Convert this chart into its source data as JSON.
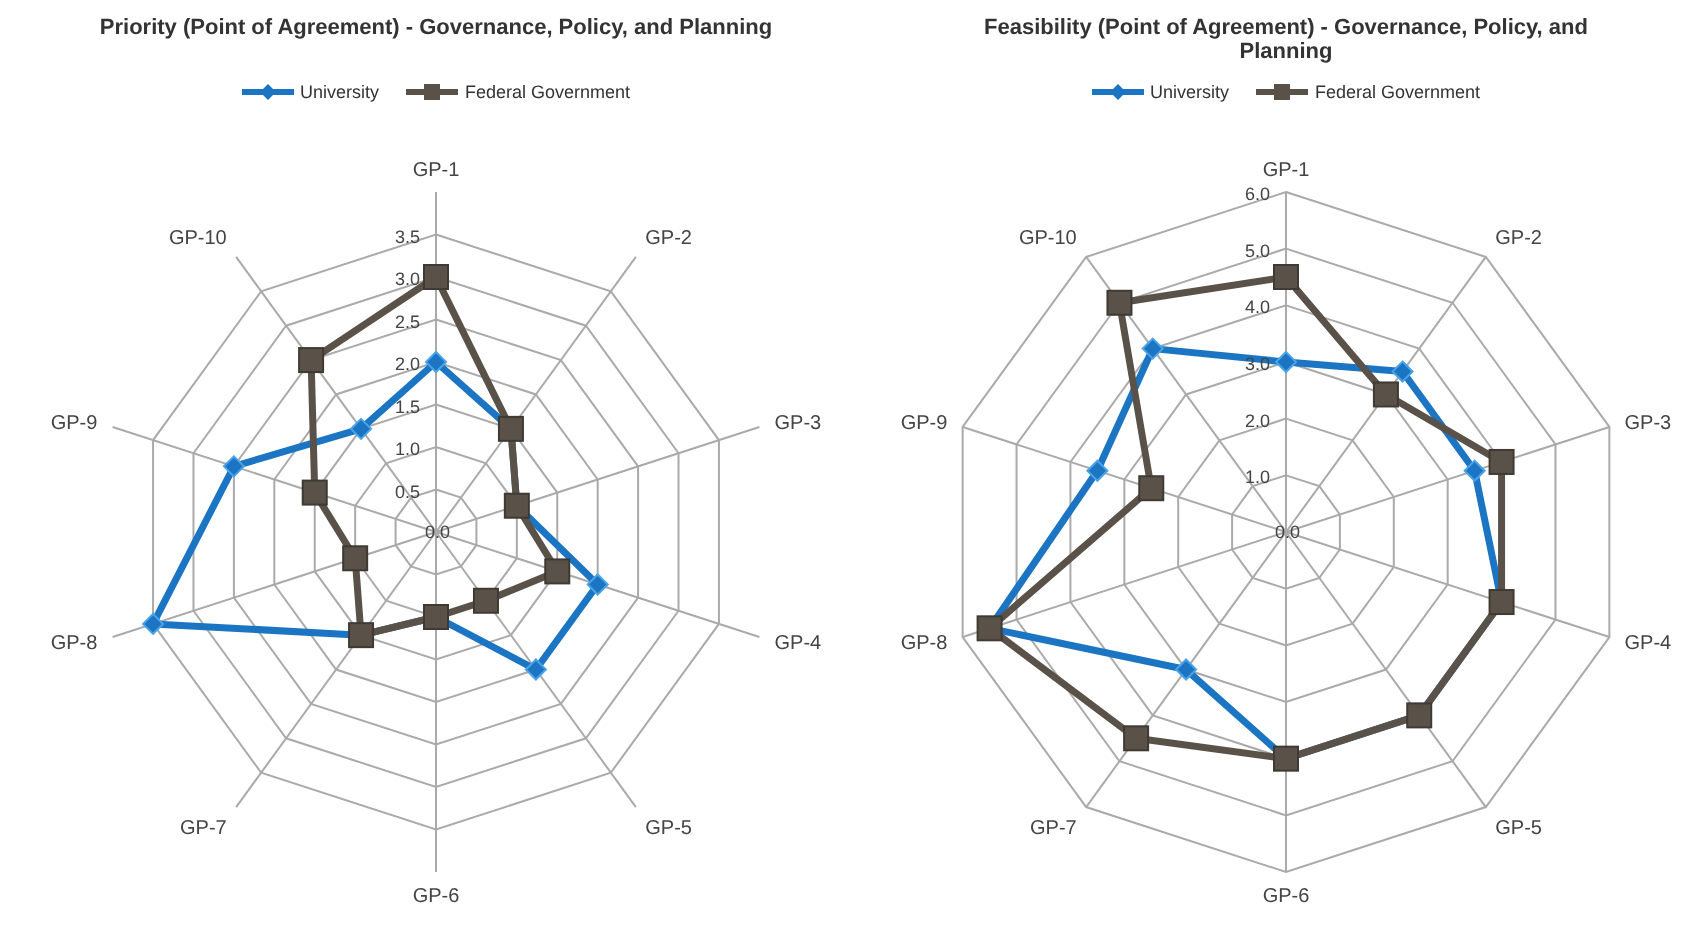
{
  "chart_data": [
    {
      "type": "radar",
      "title": "Priority (Point of Agreement) - Governance, Policy, and Planning",
      "categories": [
        "GP-1",
        "GP-2",
        "GP-3",
        "GP-4",
        "GP-5",
        "GP-6",
        "GP-7",
        "GP-8",
        "GP-9",
        "GP-10"
      ],
      "series": [
        {
          "name": "University",
          "color": "#1b75c3",
          "marker": "diamond",
          "values": [
            2.0,
            1.5,
            1.0,
            2.0,
            2.0,
            1.0,
            1.5,
            3.5,
            2.5,
            1.5
          ]
        },
        {
          "name": "Federal Government",
          "color": "#5a5248",
          "marker": "square",
          "values": [
            3.0,
            1.5,
            1.0,
            1.5,
            1.0,
            1.0,
            1.5,
            1.0,
            1.5,
            2.5
          ]
        }
      ],
      "ylim": [
        0,
        3.5
      ],
      "yticks": [
        {
          "value": 0,
          "label": "0.0"
        },
        {
          "value": 0.5,
          "label": "0.5"
        },
        {
          "value": 1,
          "label": "1.0"
        },
        {
          "value": 1.5,
          "label": "1.5"
        },
        {
          "value": 2,
          "label": "2.0"
        },
        {
          "value": 2.5,
          "label": "2.5"
        },
        {
          "value": 3,
          "label": "3.0"
        },
        {
          "value": 3.5,
          "label": "3.5"
        }
      ],
      "grid": true,
      "legend": "top"
    },
    {
      "type": "radar",
      "title": "Feasibility (Point of Agreement) - Governance, Policy, and Planning",
      "categories": [
        "GP-1",
        "GP-2",
        "GP-3",
        "GP-4",
        "GP-5",
        "GP-6",
        "GP-7",
        "GP-8",
        "GP-9",
        "GP-10"
      ],
      "series": [
        {
          "name": "University",
          "color": "#1b75c3",
          "marker": "diamond",
          "values": [
            3.0,
            3.5,
            3.5,
            4.0,
            4.0,
            4.0,
            3.0,
            5.5,
            3.5,
            4.0
          ]
        },
        {
          "name": "Federal Government",
          "color": "#5a5248",
          "marker": "square",
          "values": [
            4.5,
            3.0,
            4.0,
            4.0,
            4.0,
            4.0,
            4.5,
            5.5,
            2.5,
            5.0
          ]
        }
      ],
      "ylim": [
        0,
        6
      ],
      "yticks": [
        {
          "value": 0,
          "label": "0.0"
        },
        {
          "value": 1,
          "label": "1.0"
        },
        {
          "value": 2,
          "label": "2.0"
        },
        {
          "value": 3,
          "label": "3.0"
        },
        {
          "value": 4,
          "label": "4.0"
        },
        {
          "value": 5,
          "label": "5.0"
        },
        {
          "value": 6,
          "label": "6.0"
        }
      ],
      "grid": true,
      "legend": "top"
    }
  ]
}
